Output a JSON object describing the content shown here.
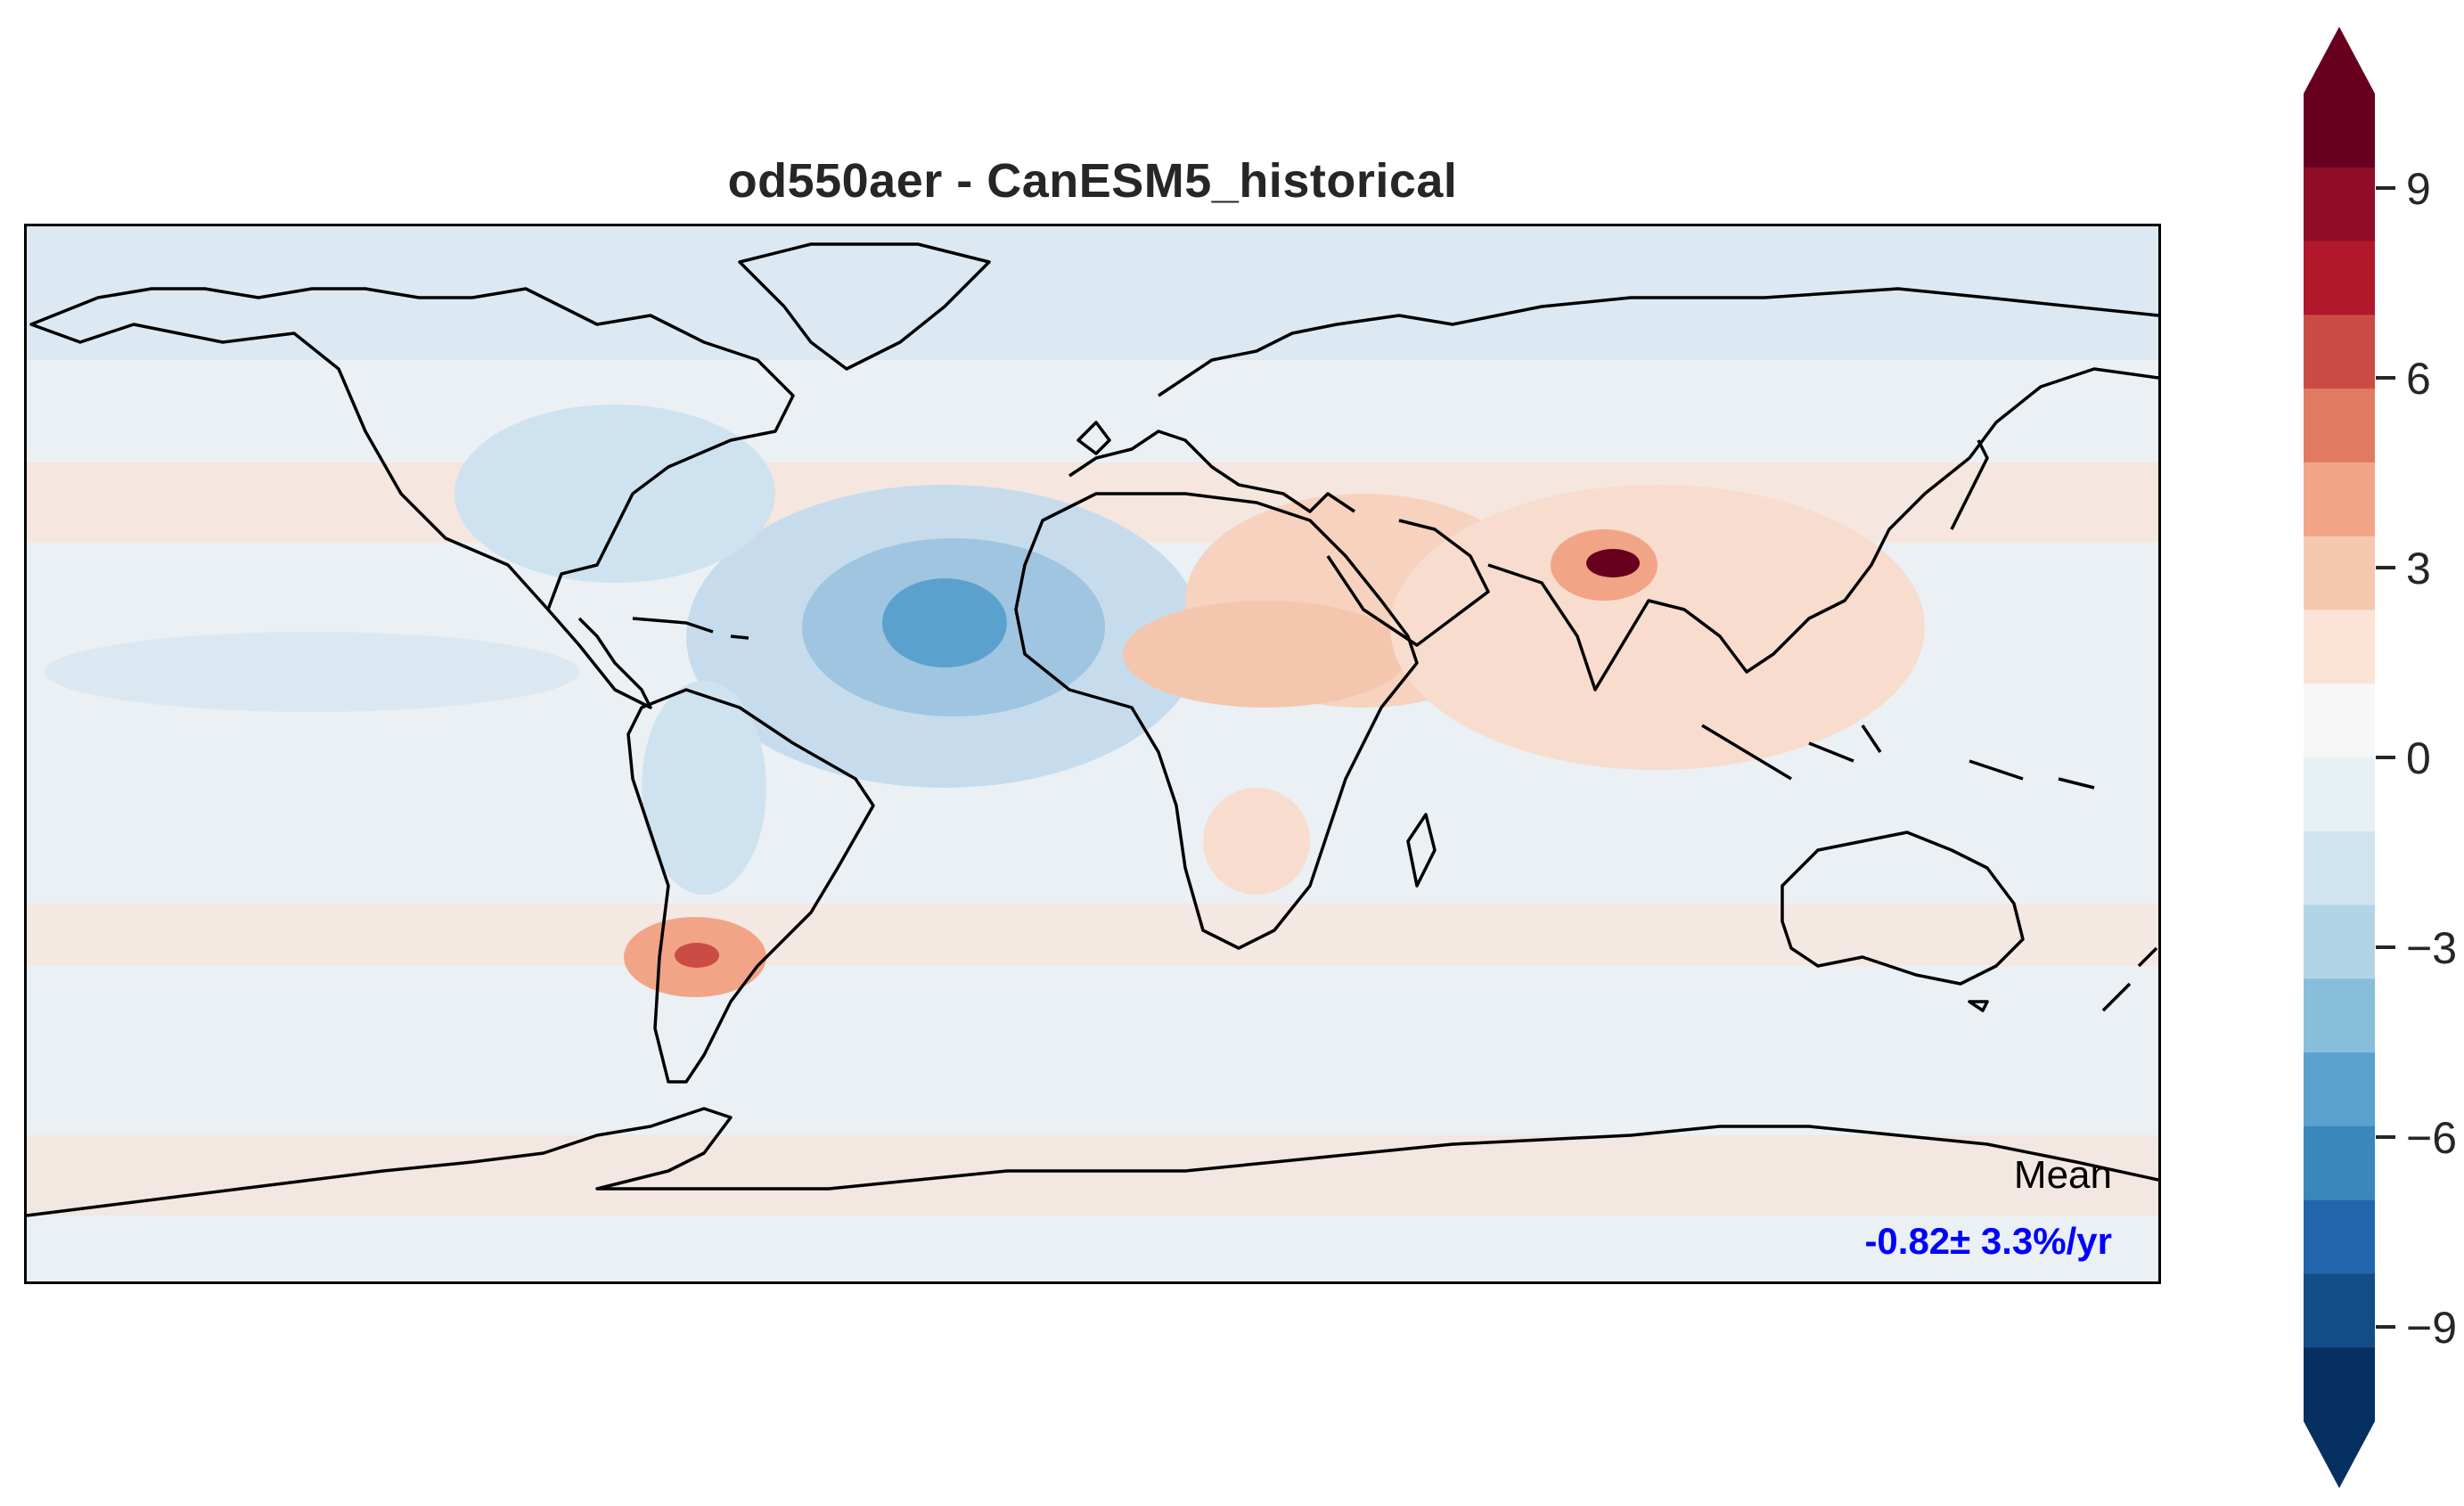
{
  "title": "od550aer - CanESM5_historical",
  "mean": {
    "label": "Mean",
    "value": "-0.82± 3.3%/yr"
  },
  "colorbar": {
    "ticks": [
      "9",
      "6",
      "3",
      "0",
      "−3",
      "−6",
      "−9"
    ],
    "tick_values": [
      9,
      6,
      3,
      0,
      -3,
      -6,
      -9
    ],
    "range": [
      -10.5,
      10.5
    ],
    "extend": "both",
    "colors": [
      "#053061",
      "#134c87",
      "#2166ac",
      "#3a87bd",
      "#5aa2cd",
      "#87beda",
      "#b1d5e7",
      "#d1e5f0",
      "#e7f0f5",
      "#f7f7f7",
      "#fbe4d6",
      "#f6c8af",
      "#f1a586",
      "#e07b62",
      "#cb4c45",
      "#b2182b",
      "#8f0d27",
      "#67001f"
    ]
  },
  "map": {
    "projection": "PlateCarree",
    "variable": "od550aer",
    "units": "%/yr",
    "ocean_color": "#eaf0f4",
    "coastline_color": "#000000"
  }
}
